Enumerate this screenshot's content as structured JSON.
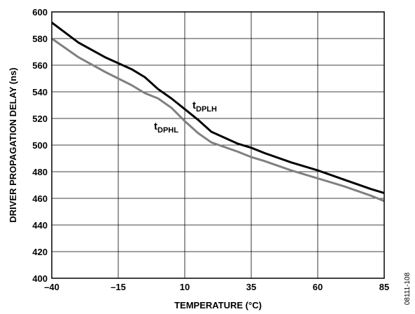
{
  "chart_data": {
    "type": "line",
    "xlabel": "TEMPERATURE (°C)",
    "ylabel": "DRIVER PROPAGATION DELAY (ns)",
    "xlim": [
      -40,
      85
    ],
    "ylim": [
      400,
      600
    ],
    "x_ticks": [
      -40,
      -15,
      10,
      35,
      60,
      85
    ],
    "x_tick_labels": [
      "–40",
      "–15",
      "10",
      "35",
      "60",
      "85"
    ],
    "y_ticks": [
      400,
      420,
      440,
      460,
      480,
      500,
      520,
      540,
      560,
      580,
      600
    ],
    "y_tick_labels": [
      "400",
      "420",
      "440",
      "460",
      "480",
      "500",
      "520",
      "540",
      "560",
      "580",
      "600"
    ],
    "grid": true,
    "series": [
      {
        "name": "tDPLH",
        "label_main": "t",
        "label_sub": "DPLH",
        "color": "#000000",
        "x": [
          -40,
          -30,
          -20,
          -10,
          -5,
          0,
          5,
          10,
          15,
          20,
          30,
          35,
          40,
          50,
          60,
          70,
          80,
          85
        ],
        "y": [
          592,
          577,
          566,
          557,
          551,
          542,
          535,
          527,
          519,
          510,
          501,
          498,
          494,
          487,
          481,
          474,
          467,
          464
        ]
      },
      {
        "name": "tDPHL",
        "label_main": "t",
        "label_sub": "DPHL",
        "color": "#808080",
        "x": [
          -40,
          -30,
          -20,
          -10,
          -5,
          0,
          5,
          10,
          15,
          20,
          30,
          35,
          40,
          50,
          60,
          70,
          80,
          85
        ],
        "y": [
          580,
          566,
          555,
          545,
          539,
          535,
          528,
          518,
          509,
          502,
          495,
          491,
          488,
          481,
          475,
          469,
          462,
          458
        ]
      }
    ],
    "annotation": "08111-108"
  }
}
